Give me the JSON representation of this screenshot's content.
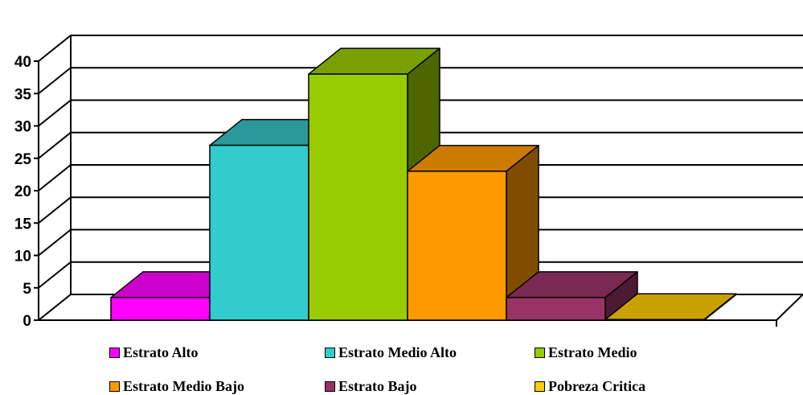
{
  "chart_data": {
    "type": "bar",
    "title": "",
    "xlabel": "",
    "ylabel": "",
    "ylim": [
      0,
      40
    ],
    "yticks": [
      "0",
      "5",
      "10",
      "15",
      "20",
      "25",
      "30",
      "35",
      "40"
    ],
    "grid": true,
    "three_d": true,
    "legend_position": "bottom",
    "series": [
      {
        "name": "Estrato Alto",
        "value": 3.5,
        "color": "#ff00ff",
        "top_color": "#cc00cc",
        "side_color": "#990099"
      },
      {
        "name": "Estrato Medio Alto",
        "value": 27,
        "color": "#33cccc",
        "top_color": "#2a9999",
        "side_color": "#1f7373"
      },
      {
        "name": "Estrato Medio",
        "value": 38,
        "color": "#99cc00",
        "top_color": "#77a000",
        "side_color": "#4d6600"
      },
      {
        "name": "Estrato Medio Bajo",
        "value": 23,
        "color": "#ff9900",
        "top_color": "#cc7a00",
        "side_color": "#804d00"
      },
      {
        "name": "Estrato Bajo",
        "value": 3.5,
        "color": "#993366",
        "top_color": "#7a2952",
        "side_color": "#4d1a33"
      },
      {
        "name": "Pobreza Critica",
        "value": 0.1,
        "color": "#ffcc00",
        "top_color": "#c8a000",
        "side_color": "#8c7000"
      }
    ]
  }
}
